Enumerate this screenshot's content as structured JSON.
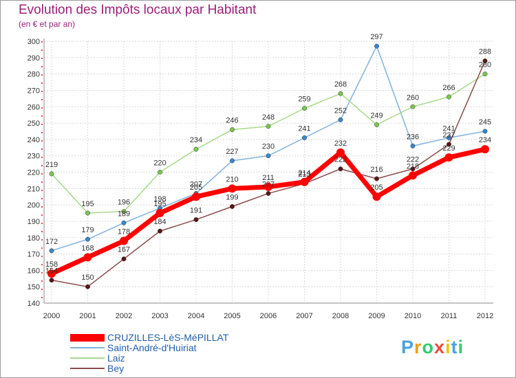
{
  "title": "Evolution des Impôts locaux par Habitant",
  "subtitle": "(en € et par an)",
  "logo": {
    "text": "Proxiti",
    "letters": [
      {
        "ch": "P",
        "color": "#4aa3df"
      },
      {
        "ch": "r",
        "color": "#f39c12"
      },
      {
        "ch": "o",
        "color": "#2ecc71"
      },
      {
        "ch": "x",
        "color": "#e74c3c"
      },
      {
        "ch": "i",
        "color": "#f1c40f"
      },
      {
        "ch": "t",
        "color": "#4aa3df"
      },
      {
        "ch": "i",
        "color": "#2ecc71"
      }
    ]
  },
  "chart_data": {
    "type": "line",
    "title": "Evolution des Impôts locaux par Habitant",
    "subtitle": "(en € et par an)",
    "xlabel": "",
    "ylabel": "",
    "categories": [
      "2000",
      "2001",
      "2002",
      "2003",
      "2004",
      "2005",
      "2006",
      "2007",
      "2008",
      "2009",
      "2010",
      "2011",
      "2012"
    ],
    "ylim": [
      140,
      300
    ],
    "yticks": [
      140,
      150,
      160,
      170,
      180,
      190,
      200,
      210,
      220,
      230,
      240,
      250,
      260,
      270,
      280,
      290,
      300
    ],
    "grid": true,
    "legend_position": "bottom-left",
    "series": [
      {
        "name": "CRUZILLES-LèS-MéPILLAT",
        "color": "#ff0000",
        "dot_color": "#ff0000",
        "style": "thick",
        "values": [
          158,
          168,
          178,
          195,
          205,
          210,
          211,
          214,
          232,
          205,
          218,
          229,
          234
        ],
        "labels": [
          "158",
          "168",
          "178",
          "195",
          "205",
          "210",
          "211",
          "214",
          "232",
          "205",
          "218",
          "229",
          "234"
        ]
      },
      {
        "name": "Saint-André-d'Huiriat",
        "color": "#7fb2dd",
        "dot_color": "#3a87c8",
        "style": "thin",
        "values": [
          172,
          179,
          189,
          198,
          207,
          227,
          230,
          241,
          252,
          297,
          236,
          241,
          245
        ],
        "labels": [
          "172",
          "179",
          "189",
          "198",
          "207",
          "227",
          "230",
          "241",
          "252",
          "297",
          "236",
          "241",
          "245"
        ]
      },
      {
        "name": "Laiz",
        "color": "#a8d98a",
        "dot_color": "#7ac74f",
        "style": "thin",
        "values": [
          219,
          195,
          196,
          220,
          234,
          246,
          248,
          259,
          268,
          249,
          260,
          266,
          280
        ],
        "labels": [
          "219",
          "195",
          "196",
          "220",
          "234",
          "246",
          "248",
          "259",
          "268",
          "249",
          "260",
          "266",
          "280"
        ]
      },
      {
        "name": "Bey",
        "color": "#8a4a4a",
        "dot_color": "#5a1515",
        "style": "thin",
        "values": [
          154,
          150,
          167,
          184,
          191,
          199,
          207,
          213,
          222,
          216,
          222,
          237,
          288
        ],
        "labels": [
          "154",
          "150",
          "167",
          "184",
          "191",
          "199",
          "207",
          "213",
          "222",
          "216",
          "222",
          "237",
          "288"
        ]
      }
    ]
  }
}
